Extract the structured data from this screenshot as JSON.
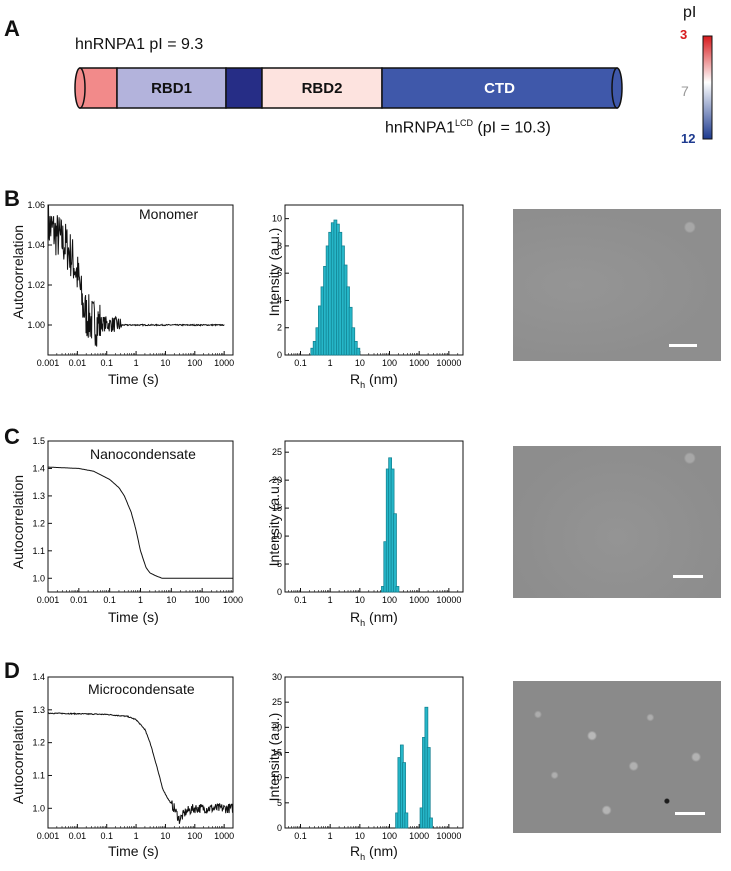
{
  "panel_a": {
    "letter": "A",
    "full_label": "hnRNPA1 pI = 9.3",
    "lcd_label_main": "hnRNPA1",
    "lcd_label_sup": "LCD",
    "lcd_label_tail": " (pI = 10.3)",
    "domains": [
      {
        "label": "",
        "color": "#f28a8a"
      },
      {
        "label": "RBD1",
        "color": "#b3b3dc"
      },
      {
        "label": "",
        "color": "#262d86"
      },
      {
        "label": "RBD2",
        "color": "#fde3df"
      },
      {
        "label": "CTD",
        "color": "#3f58aa"
      }
    ],
    "colorbar": {
      "title": "pI",
      "top": "3",
      "mid": "7",
      "bottom": "12",
      "top_color": "#d7191c",
      "mid_color": "#ffffff",
      "bottom_color": "#1d3a8f"
    }
  },
  "rows": [
    {
      "letter": "B",
      "title": "Monomer",
      "ylabel_ac": "Autocorrelation",
      "xlabel_ac": "Time (s)",
      "ylabel_int": "Intensity (a.u.)",
      "xlabel_int": "R",
      "xlabel_int_sub": "h",
      "xlabel_int_tail": " (nm)"
    },
    {
      "letter": "C",
      "title": "Nanocondensate",
      "ylabel_ac": "Autocorrelation",
      "xlabel_ac": "Time (s)",
      "ylabel_int": "Intensity (a.u.)",
      "xlabel_int": "R",
      "xlabel_int_sub": "h",
      "xlabel_int_tail": " (nm)"
    },
    {
      "letter": "D",
      "title": "Microcondensate",
      "ylabel_ac": "Autocorrelation",
      "xlabel_ac": "Time (s)",
      "ylabel_int": "Intensity (a.u.)",
      "xlabel_int": "R",
      "xlabel_int_sub": "h",
      "xlabel_int_tail": " (nm)"
    }
  ],
  "chart_data": [
    {
      "type": "line",
      "id": "B-autocorr",
      "xscale": "log",
      "xlim": [
        0.001,
        2000
      ],
      "xticks": [
        "0.001",
        "0.01",
        "0.1",
        "1",
        "10",
        "100",
        "1000"
      ],
      "ylim": [
        0.985,
        1.06
      ],
      "yticks": [
        "1.00",
        "1.02",
        "1.04",
        "1.06"
      ],
      "x": [
        0.001,
        0.002,
        0.004,
        0.006,
        0.008,
        0.01,
        0.012,
        0.015,
        0.02,
        0.03,
        0.05,
        0.1,
        0.3,
        1,
        10,
        100,
        1000
      ],
      "y": [
        1.05,
        1.045,
        1.04,
        1.035,
        1.03,
        1.025,
        1.02,
        1.01,
        1.005,
        1.002,
        1.001,
        1.0005,
        1.0,
        1.0,
        1.0,
        1.0,
        1.0
      ],
      "noisy": true
    },
    {
      "type": "bar",
      "id": "B-intensity",
      "xscale": "log",
      "xlim": [
        0.03,
        30000
      ],
      "xticks": [
        "0.1",
        "1",
        "10",
        "100",
        "1000",
        "10000"
      ],
      "ylim": [
        0,
        11
      ],
      "yticks": [
        "0",
        "2",
        "4",
        "6",
        "8",
        "10"
      ],
      "x": [
        0.25,
        0.3,
        0.37,
        0.45,
        0.55,
        0.67,
        0.82,
        1.0,
        1.22,
        1.5,
        1.82,
        2.2,
        2.7,
        3.3,
        4.0,
        4.9,
        6.0,
        7.3,
        8.9
      ],
      "values": [
        0.5,
        1.0,
        2.0,
        3.6,
        5.0,
        6.5,
        8.0,
        9.0,
        9.7,
        9.9,
        9.6,
        9.0,
        8.0,
        6.6,
        5.0,
        3.5,
        2.0,
        1.0,
        0.5
      ],
      "color": "#26b6c8"
    },
    {
      "type": "line",
      "id": "C-autocorr",
      "xscale": "log",
      "xlim": [
        0.001,
        1000
      ],
      "xticks": [
        "0.001",
        "0.01",
        "0.1",
        "1",
        "10",
        "100",
        "1000"
      ],
      "ylim": [
        0.95,
        1.5
      ],
      "yticks": [
        "1.0",
        "1.1",
        "1.2",
        "1.3",
        "1.4",
        "1.5"
      ],
      "x": [
        0.001,
        0.01,
        0.03,
        0.1,
        0.2,
        0.3,
        0.5,
        0.7,
        1,
        1.5,
        2,
        3,
        5,
        10,
        100,
        1000
      ],
      "y": [
        1.405,
        1.4,
        1.39,
        1.36,
        1.33,
        1.3,
        1.24,
        1.18,
        1.1,
        1.04,
        1.02,
        1.01,
        1.0,
        1.0,
        1.0,
        1.0
      ],
      "noisy": false
    },
    {
      "type": "bar",
      "id": "C-intensity",
      "xscale": "log",
      "xlim": [
        0.03,
        30000
      ],
      "xticks": [
        "0.1",
        "1",
        "10",
        "100",
        "1000",
        "10000"
      ],
      "ylim": [
        0,
        27
      ],
      "yticks": [
        "0",
        "5",
        "10",
        "15",
        "20",
        "25"
      ],
      "x": [
        60,
        72,
        87,
        105,
        127,
        153,
        185
      ],
      "values": [
        1.0,
        9.0,
        22.0,
        24.0,
        22.0,
        14.0,
        1.0
      ],
      "color": "#26b6c8"
    },
    {
      "type": "line",
      "id": "D-autocorr",
      "xscale": "log",
      "xlim": [
        0.001,
        2000
      ],
      "xticks": [
        "0.001",
        "0.01",
        "0.1",
        "1",
        "10",
        "100",
        "1000"
      ],
      "ylim": [
        0.94,
        1.4
      ],
      "yticks": [
        "1.0",
        "1.1",
        "1.2",
        "1.3",
        "1.4"
      ],
      "x": [
        0.001,
        0.01,
        0.1,
        0.5,
        1,
        2,
        3,
        5,
        8,
        12,
        20,
        30,
        50,
        100,
        1000,
        2000
      ],
      "y": [
        1.29,
        1.288,
        1.286,
        1.28,
        1.27,
        1.24,
        1.2,
        1.13,
        1.06,
        1.03,
        1.0,
        0.965,
        0.99,
        1.0,
        1.0,
        1.0
      ],
      "noisy": true
    },
    {
      "type": "bar",
      "id": "D-intensity",
      "xscale": "log",
      "xlim": [
        0.03,
        30000
      ],
      "xticks": [
        "0.1",
        "1",
        "10",
        "100",
        "1000",
        "10000"
      ],
      "ylim": [
        0,
        30
      ],
      "yticks": [
        "0",
        "5",
        "10",
        "15",
        "20",
        "25",
        "30"
      ],
      "x": [
        180,
        215,
        260,
        310,
        370,
        1200,
        1450,
        1750,
        2100,
        2500
      ],
      "values": [
        3.0,
        14.0,
        16.5,
        13.0,
        3.0,
        4.0,
        18.0,
        24.0,
        16.0,
        2.0
      ],
      "color": "#26b6c8"
    }
  ]
}
